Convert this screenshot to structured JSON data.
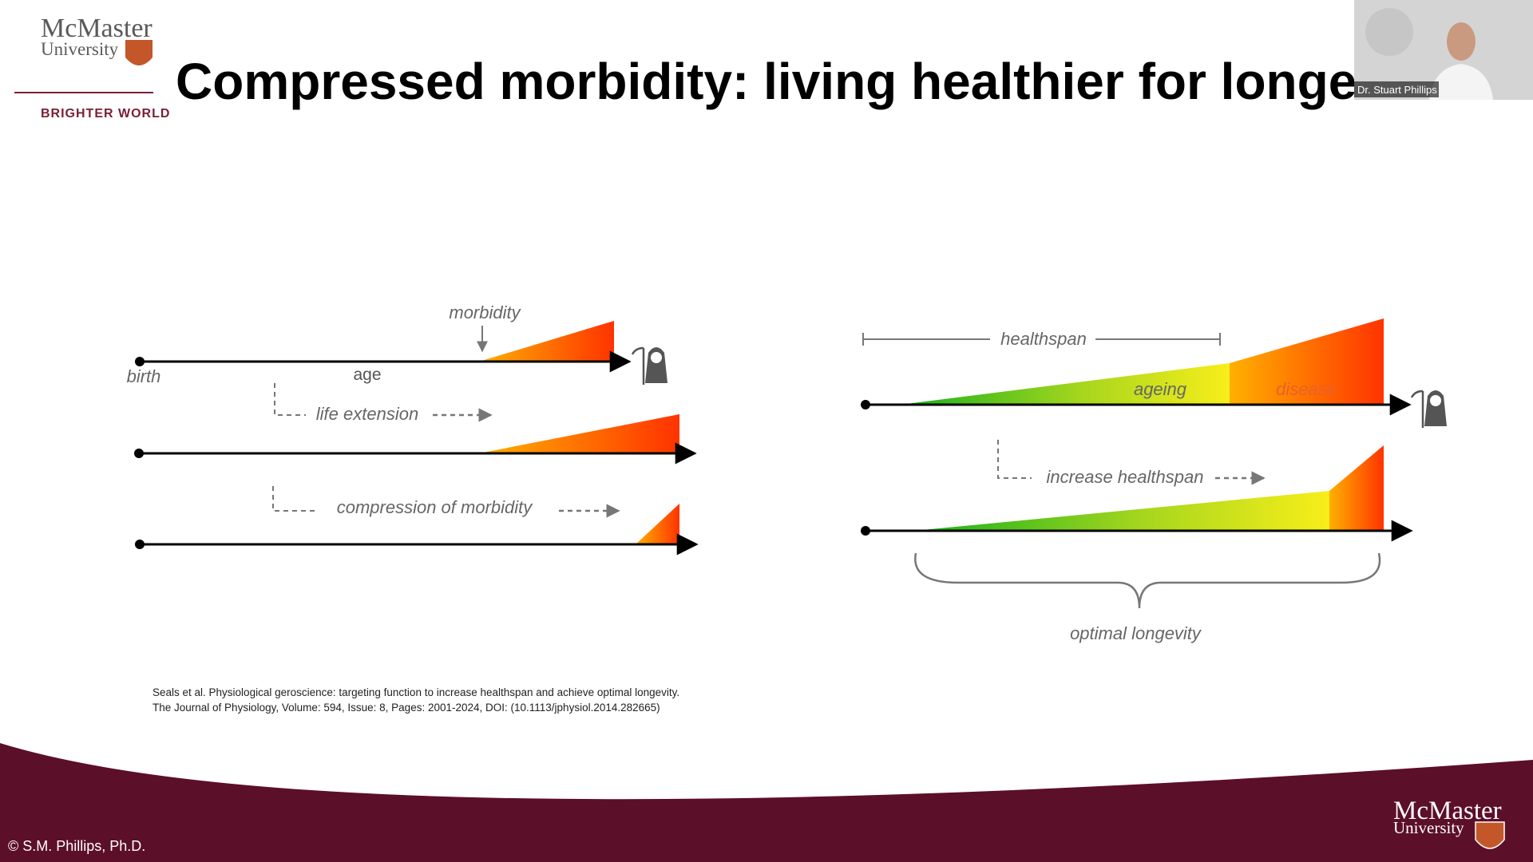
{
  "header": {
    "logo_name": "McMaster",
    "logo_sub": "University",
    "tagline": "BRIGHTER WORLD",
    "title": "Compressed morbidity: living healthier for longer"
  },
  "video": {
    "name": "Dr. Stuart Phillips"
  },
  "left_diagram": {
    "morbidity": "morbidity",
    "birth": "birth",
    "age": "age",
    "life_extension": "life extension",
    "compression": "compression of morbidity"
  },
  "right_diagram": {
    "healthspan": "healthspan",
    "ageing": "ageing",
    "disease": "disease",
    "increase_healthspan": "increase healthspan",
    "optimal_longevity": "optimal longevity"
  },
  "citation": {
    "line1": "Seals et al. Physiological geroscience: targeting function to increase healthspan and achieve optimal longevity.",
    "line2": "The Journal of Physiology, Volume: 594, Issue: 8, Pages: 2001-2024, DOI: (10.1113/jphysiol.2014.282665)"
  },
  "footer": {
    "copyright": "© S.M. Phillips, Ph.D.",
    "logo_name": "McMaster",
    "logo_sub": "University"
  }
}
